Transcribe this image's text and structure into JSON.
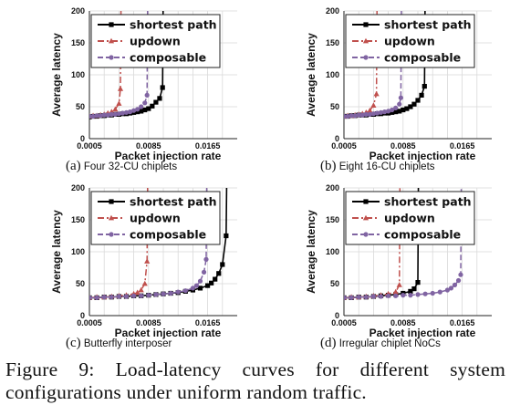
{
  "figure": {
    "caption": "Figure 9: Load-latency curves for different system configurations under uniform random traffic."
  },
  "colors": {
    "shortest_path": "#000000",
    "updown": "#c0504d",
    "composable": "#8064a2",
    "grid": "#d9d9d9"
  },
  "chart_data": [
    {
      "type": "line",
      "sub_label": "(a)",
      "sub_caption": "Four 32-CU chiplets",
      "xlabel": "Packet injection rate",
      "ylabel": "Average latency",
      "xlim": [
        0.0005,
        0.0205
      ],
      "ylim": [
        0,
        200
      ],
      "xticks": [
        0.0005,
        0.0085,
        0.0165
      ],
      "xtick_labels": [
        "0.0005",
        "0.0085",
        "0.0165"
      ],
      "yticks": [
        0,
        50,
        100,
        150,
        200
      ],
      "grid": true,
      "legend_position": "top-center",
      "series": [
        {
          "name": "shortest path",
          "marker": "square",
          "dash": "solid",
          "x": [
            0.0005,
            0.001,
            0.0015,
            0.002,
            0.0025,
            0.003,
            0.0035,
            0.004,
            0.0045,
            0.005,
            0.0055,
            0.006,
            0.0065,
            0.007,
            0.0075,
            0.008,
            0.0085,
            0.009,
            0.0095,
            0.01,
            0.0104
          ],
          "y": [
            34,
            35,
            35,
            36,
            36,
            37,
            37,
            38,
            38,
            39,
            39,
            40,
            41,
            42,
            43,
            45,
            47,
            51,
            57,
            63,
            80
          ]
        },
        {
          "name": "updown",
          "marker": "triangle",
          "dash": "dashdot",
          "x": [
            0.0005,
            0.001,
            0.0015,
            0.002,
            0.0025,
            0.003,
            0.0035,
            0.004,
            0.0045,
            0.0047
          ],
          "y": [
            35,
            36,
            36,
            37,
            38,
            40,
            42,
            46,
            55,
            78
          ]
        },
        {
          "name": "composable",
          "marker": "circle",
          "dash": "dash",
          "x": [
            0.0005,
            0.001,
            0.0015,
            0.002,
            0.0025,
            0.003,
            0.0035,
            0.004,
            0.0045,
            0.005,
            0.0055,
            0.006,
            0.0065,
            0.007,
            0.0075,
            0.008,
            0.0083
          ],
          "y": [
            35,
            35,
            36,
            36,
            37,
            37,
            38,
            38,
            39,
            40,
            41,
            42,
            44,
            46,
            50,
            56,
            68
          ]
        }
      ]
    },
    {
      "type": "line",
      "sub_label": "(b)",
      "sub_caption": "Eight 16-CU chiplets",
      "xlabel": "Packet injection rate",
      "ylabel": "Average latency",
      "xlim": [
        0.0005,
        0.0205
      ],
      "ylim": [
        0,
        200
      ],
      "xticks": [
        0.0005,
        0.0085,
        0.0165
      ],
      "xtick_labels": [
        "0.0005",
        "0.0085",
        "0.0165"
      ],
      "yticks": [
        0,
        50,
        100,
        150,
        200
      ],
      "grid": true,
      "legend_position": "top-center",
      "series": [
        {
          "name": "shortest path",
          "marker": "square",
          "dash": "solid",
          "x": [
            0.0005,
            0.001,
            0.0015,
            0.002,
            0.0025,
            0.003,
            0.0035,
            0.004,
            0.0045,
            0.005,
            0.0055,
            0.006,
            0.0065,
            0.007,
            0.0075,
            0.008,
            0.0085,
            0.009,
            0.0095,
            0.01,
            0.0105,
            0.011,
            0.0114
          ],
          "y": [
            35,
            35,
            36,
            36,
            37,
            37,
            37,
            38,
            38,
            39,
            39,
            40,
            40,
            41,
            42,
            43,
            45,
            47,
            50,
            54,
            60,
            68,
            82
          ]
        },
        {
          "name": "updown",
          "marker": "triangle",
          "dash": "dashdot",
          "x": [
            0.0005,
            0.001,
            0.0015,
            0.002,
            0.0025,
            0.003,
            0.0035,
            0.004,
            0.0045,
            0.0049
          ],
          "y": [
            35,
            36,
            36,
            37,
            38,
            39,
            41,
            44,
            52,
            70
          ]
        },
        {
          "name": "composable",
          "marker": "circle",
          "dash": "dash",
          "x": [
            0.0005,
            0.001,
            0.0015,
            0.002,
            0.0025,
            0.003,
            0.0035,
            0.004,
            0.0045,
            0.005,
            0.0055,
            0.006,
            0.0065,
            0.007,
            0.0075,
            0.008,
            0.0082
          ],
          "y": [
            35,
            35,
            36,
            36,
            37,
            37,
            38,
            38,
            39,
            40,
            41,
            42,
            43,
            45,
            48,
            54,
            64
          ]
        }
      ]
    },
    {
      "type": "line",
      "sub_label": "(c)",
      "sub_caption": "Butterfly interposer",
      "xlabel": "Packet injection rate",
      "ylabel": "Average latency",
      "xlim": [
        0.0005,
        0.0205
      ],
      "ylim": [
        0,
        200
      ],
      "xticks": [
        0.0005,
        0.0085,
        0.0165
      ],
      "xtick_labels": [
        "0.0005",
        "0.0085",
        "0.0165"
      ],
      "yticks": [
        0,
        50,
        100,
        150,
        200
      ],
      "grid": true,
      "legend_position": "top-center",
      "series": [
        {
          "name": "shortest path",
          "marker": "square",
          "dash": "solid",
          "x": [
            0.0005,
            0.0015,
            0.0025,
            0.0035,
            0.0045,
            0.0055,
            0.0065,
            0.0075,
            0.0085,
            0.0095,
            0.0105,
            0.0115,
            0.0125,
            0.0135,
            0.0145,
            0.0155,
            0.0165,
            0.017,
            0.0175,
            0.018,
            0.0185,
            0.019
          ],
          "y": [
            28,
            28,
            29,
            29,
            30,
            30,
            31,
            31,
            32,
            33,
            34,
            35,
            36,
            38,
            40,
            43,
            47,
            51,
            57,
            66,
            80,
            125
          ]
        },
        {
          "name": "updown",
          "marker": "triangle",
          "dash": "dashdot",
          "x": [
            0.0005,
            0.0015,
            0.0025,
            0.0035,
            0.0045,
            0.0055,
            0.0065,
            0.007,
            0.0075,
            0.008,
            0.0083
          ],
          "y": [
            28,
            29,
            29,
            30,
            31,
            32,
            34,
            36,
            40,
            50,
            85
          ]
        },
        {
          "name": "composable",
          "marker": "circle",
          "dash": "dash",
          "x": [
            0.0005,
            0.0015,
            0.0025,
            0.0035,
            0.0045,
            0.0055,
            0.0065,
            0.0075,
            0.0085,
            0.0095,
            0.0105,
            0.0115,
            0.0125,
            0.0135,
            0.0145,
            0.015,
            0.0155,
            0.016,
            0.0163
          ],
          "y": [
            28,
            28,
            29,
            29,
            30,
            30,
            31,
            31,
            32,
            33,
            34,
            35,
            37,
            39,
            43,
            47,
            54,
            68,
            88
          ]
        }
      ]
    },
    {
      "type": "line",
      "sub_label": "(d)",
      "sub_caption": "Irregular chiplet NoCs",
      "xlabel": "Packet injection rate",
      "ylabel": "Average latency",
      "xlim": [
        0.0005,
        0.0205
      ],
      "ylim": [
        0,
        200
      ],
      "xticks": [
        0.0005,
        0.0085,
        0.0165
      ],
      "xtick_labels": [
        "0.0005",
        "0.0085",
        "0.0165"
      ],
      "yticks": [
        0,
        50,
        100,
        150,
        200
      ],
      "grid": true,
      "legend_position": "top-center",
      "series": [
        {
          "name": "shortest path",
          "marker": "square",
          "dash": "solid",
          "x": [
            0.0005,
            0.0015,
            0.0025,
            0.0035,
            0.0045,
            0.0055,
            0.0065,
            0.0075,
            0.0085,
            0.0095,
            0.01,
            0.0105
          ],
          "y": [
            28,
            28,
            29,
            29,
            30,
            31,
            32,
            33,
            35,
            38,
            42,
            52
          ]
        },
        {
          "name": "updown",
          "marker": "triangle",
          "dash": "dashdot",
          "x": [
            0.0005,
            0.0015,
            0.0025,
            0.0035,
            0.0045,
            0.0055,
            0.0065,
            0.0075,
            0.008
          ],
          "y": [
            28,
            29,
            29,
            30,
            31,
            32,
            34,
            37,
            48
          ]
        },
        {
          "name": "composable",
          "marker": "circle",
          "dash": "dash",
          "x": [
            0.0005,
            0.0015,
            0.0025,
            0.0035,
            0.0045,
            0.0055,
            0.0065,
            0.0075,
            0.0085,
            0.0095,
            0.0105,
            0.0115,
            0.0125,
            0.0135,
            0.0145,
            0.015,
            0.0155,
            0.016,
            0.0163
          ],
          "y": [
            28,
            28,
            29,
            29,
            30,
            30,
            31,
            31,
            32,
            32,
            33,
            34,
            35,
            37,
            40,
            43,
            48,
            55,
            64
          ]
        }
      ]
    }
  ]
}
